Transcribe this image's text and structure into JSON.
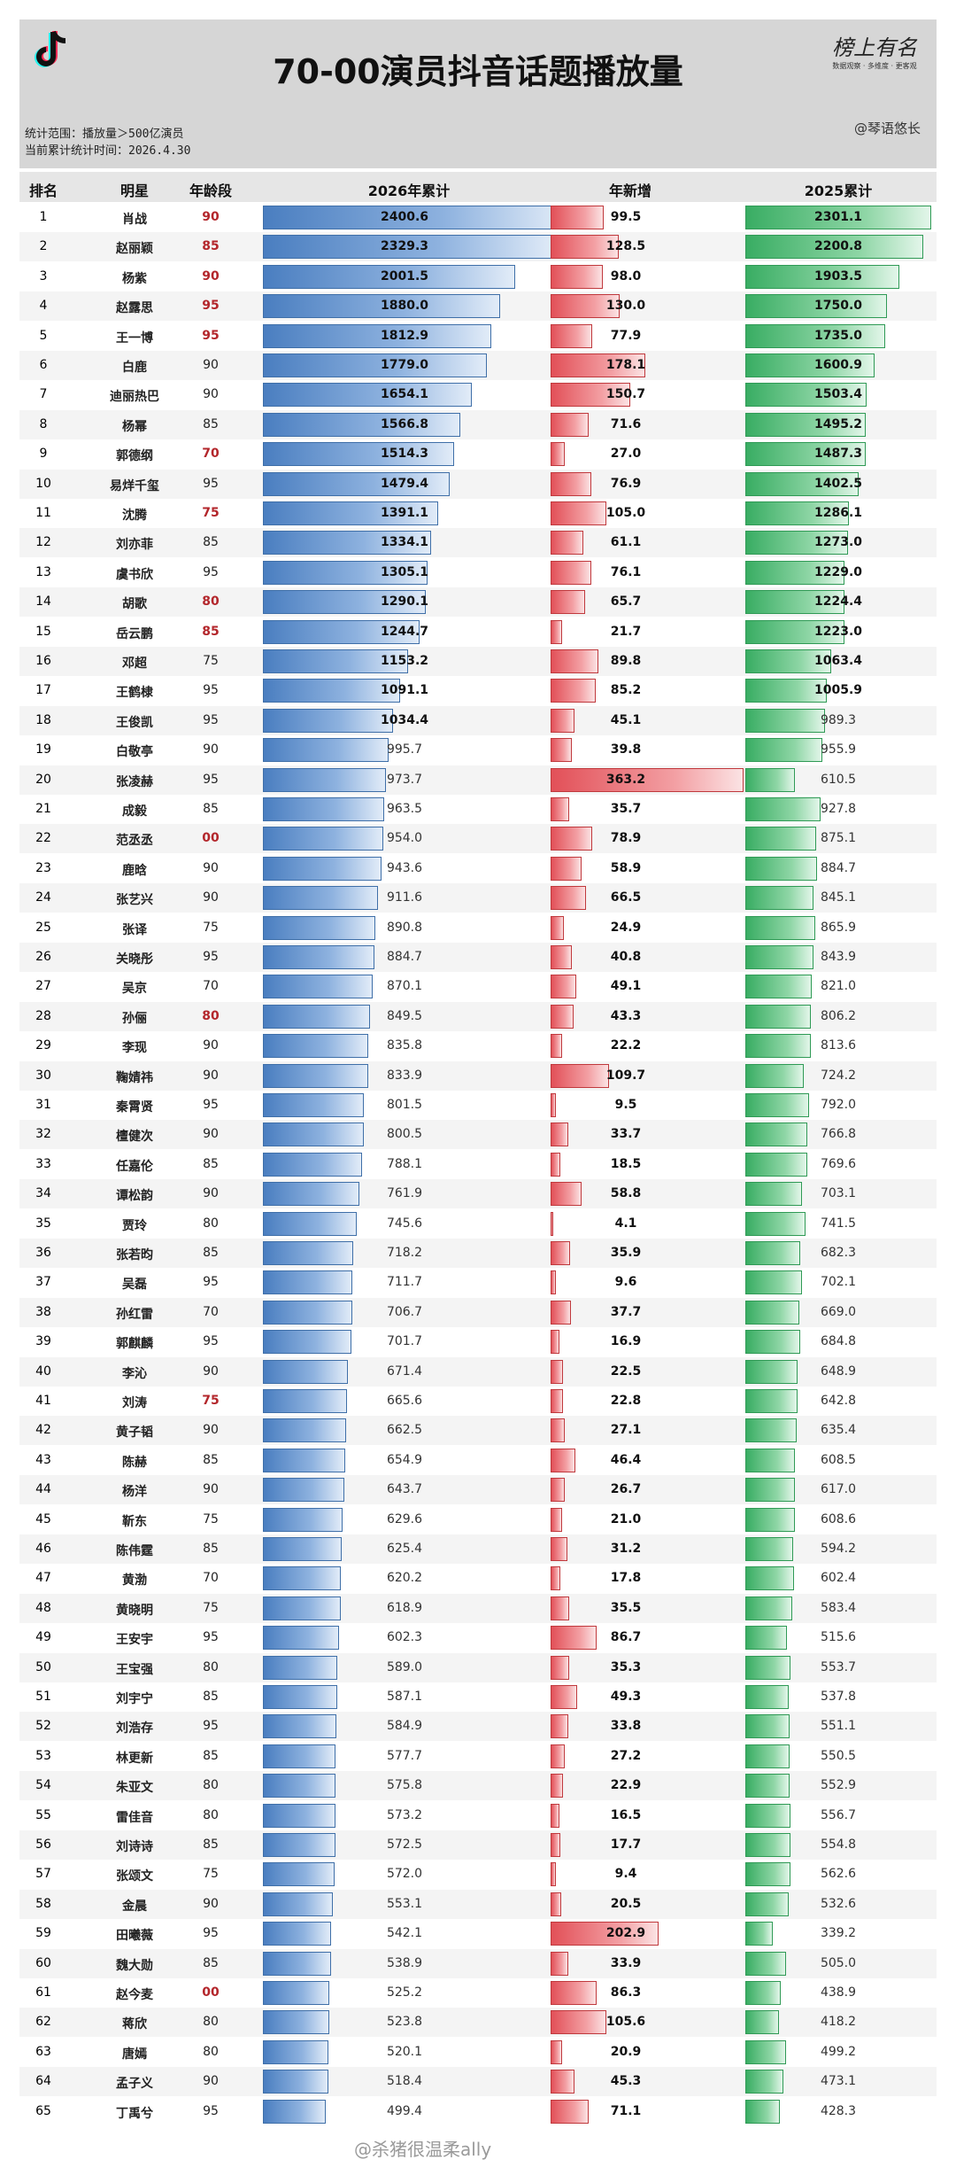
{
  "header": {
    "title": "70-00演员抖音话题播放量",
    "meta_scope": "统计范围：播放量＞500亿演员",
    "meta_time": "当前累计统计时间：2026.4.30",
    "signature": "榜上有名",
    "signature_sub": "数据观察 · 多维度 · 更客观",
    "account": "@琴语悠长"
  },
  "footer_watermark": "@杀猪很温柔ally",
  "colors": {
    "bar_2026": "#4a7ec0",
    "bar_new": "#e25058",
    "bar_2025": "#39ad63",
    "age_highlight": "#b3262b"
  },
  "chart_data": {
    "type": "table",
    "columns": [
      "排名",
      "明星",
      "年龄段",
      "2026年累计",
      "年新增",
      "2025累计"
    ],
    "rows": [
      {
        "rank": "1",
        "name": "肖战",
        "age": "90",
        "v2026": 2400.6,
        "new": 99.5,
        "v2025": 2301.1,
        "hl": true
      },
      {
        "rank": "2",
        "name": "赵丽颖",
        "age": "85",
        "v2026": 2329.3,
        "new": 128.5,
        "v2025": 2200.8,
        "hl": true
      },
      {
        "rank": "3",
        "name": "杨紫",
        "age": "90",
        "v2026": 2001.5,
        "new": 98.0,
        "v2025": 1903.5,
        "hl": true
      },
      {
        "rank": "4",
        "name": "赵露思",
        "age": "95",
        "v2026": 1880.0,
        "new": 130.0,
        "v2025": 1750.0,
        "hl": true
      },
      {
        "rank": "5",
        "name": "王一博",
        "age": "95",
        "v2026": 1812.9,
        "new": 77.9,
        "v2025": 1735.0,
        "hl": true
      },
      {
        "rank": "6",
        "name": "白鹿",
        "age": "90",
        "v2026": 1779.0,
        "new": 178.1,
        "v2025": 1600.9,
        "hl": false
      },
      {
        "rank": "7",
        "name": "迪丽热巴",
        "age": "90",
        "v2026": 1654.1,
        "new": 150.7,
        "v2025": 1503.4,
        "hl": false
      },
      {
        "rank": "8",
        "name": "杨幂",
        "age": "85",
        "v2026": 1566.8,
        "new": 71.6,
        "v2025": 1495.2,
        "hl": false
      },
      {
        "rank": "9",
        "name": "郭德纲",
        "age": "70",
        "v2026": 1514.3,
        "new": 27.0,
        "v2025": 1487.3,
        "hl": true
      },
      {
        "rank": "10",
        "name": "易烊千玺",
        "age": "95",
        "v2026": 1479.4,
        "new": 76.9,
        "v2025": 1402.5,
        "hl": false
      },
      {
        "rank": "11",
        "name": "沈腾",
        "age": "75",
        "v2026": 1391.1,
        "new": 105.0,
        "v2025": 1286.1,
        "hl": true
      },
      {
        "rank": "12",
        "name": "刘亦菲",
        "age": "85",
        "v2026": 1334.1,
        "new": 61.1,
        "v2025": 1273.0,
        "hl": false
      },
      {
        "rank": "13",
        "name": "虞书欣",
        "age": "95",
        "v2026": 1305.1,
        "new": 76.1,
        "v2025": 1229.0,
        "hl": false
      },
      {
        "rank": "14",
        "name": "胡歌",
        "age": "80",
        "v2026": 1290.1,
        "new": 65.7,
        "v2025": 1224.4,
        "hl": true
      },
      {
        "rank": "15",
        "name": "岳云鹏",
        "age": "85",
        "v2026": 1244.7,
        "new": 21.7,
        "v2025": 1223.0,
        "hl": true
      },
      {
        "rank": "16",
        "name": "邓超",
        "age": "75",
        "v2026": 1153.2,
        "new": 89.8,
        "v2025": 1063.4,
        "hl": false
      },
      {
        "rank": "17",
        "name": "王鹤棣",
        "age": "95",
        "v2026": 1091.1,
        "new": 85.2,
        "v2025": 1005.9,
        "hl": false
      },
      {
        "rank": "18",
        "name": "王俊凯",
        "age": "95",
        "v2026": 1034.4,
        "new": 45.1,
        "v2025": 989.3,
        "hl": false
      },
      {
        "rank": "19",
        "name": "白敬亭",
        "age": "90",
        "v2026": 995.7,
        "new": 39.8,
        "v2025": 955.9,
        "hl": false
      },
      {
        "rank": "20",
        "name": "张凌赫",
        "age": "95",
        "v2026": 973.7,
        "new": 363.2,
        "v2025": 610.5,
        "hl": false
      },
      {
        "rank": "21",
        "name": "成毅",
        "age": "85",
        "v2026": 963.5,
        "new": 35.7,
        "v2025": 927.8,
        "hl": false
      },
      {
        "rank": "22",
        "name": "范丞丞",
        "age": "00",
        "v2026": 954.0,
        "new": 78.9,
        "v2025": 875.1,
        "hl": true
      },
      {
        "rank": "23",
        "name": "鹿晗",
        "age": "90",
        "v2026": 943.6,
        "new": 58.9,
        "v2025": 884.7,
        "hl": false
      },
      {
        "rank": "24",
        "name": "张艺兴",
        "age": "90",
        "v2026": 911.6,
        "new": 66.5,
        "v2025": 845.1,
        "hl": false
      },
      {
        "rank": "25",
        "name": "张译",
        "age": "75",
        "v2026": 890.8,
        "new": 24.9,
        "v2025": 865.9,
        "hl": false
      },
      {
        "rank": "26",
        "name": "关晓彤",
        "age": "95",
        "v2026": 884.7,
        "new": 40.8,
        "v2025": 843.9,
        "hl": false
      },
      {
        "rank": "27",
        "name": "吴京",
        "age": "70",
        "v2026": 870.1,
        "new": 49.1,
        "v2025": 821.0,
        "hl": false
      },
      {
        "rank": "28",
        "name": "孙俪",
        "age": "80",
        "v2026": 849.5,
        "new": 43.3,
        "v2025": 806.2,
        "hl": true
      },
      {
        "rank": "29",
        "name": "李现",
        "age": "90",
        "v2026": 835.8,
        "new": 22.2,
        "v2025": 813.6,
        "hl": false
      },
      {
        "rank": "30",
        "name": "鞠婧祎",
        "age": "90",
        "v2026": 833.9,
        "new": 109.7,
        "v2025": 724.2,
        "hl": false
      },
      {
        "rank": "31",
        "name": "秦霄贤",
        "age": "95",
        "v2026": 801.5,
        "new": 9.5,
        "v2025": 792.0,
        "hl": false
      },
      {
        "rank": "32",
        "name": "檀健次",
        "age": "90",
        "v2026": 800.5,
        "new": 33.7,
        "v2025": 766.8,
        "hl": false
      },
      {
        "rank": "33",
        "name": "任嘉伦",
        "age": "85",
        "v2026": 788.1,
        "new": 18.5,
        "v2025": 769.6,
        "hl": false
      },
      {
        "rank": "34",
        "name": "谭松韵",
        "age": "90",
        "v2026": 761.9,
        "new": 58.8,
        "v2025": 703.1,
        "hl": false
      },
      {
        "rank": "35",
        "name": "贾玲",
        "age": "80",
        "v2026": 745.6,
        "new": 4.1,
        "v2025": 741.5,
        "hl": false
      },
      {
        "rank": "36",
        "name": "张若昀",
        "age": "85",
        "v2026": 718.2,
        "new": 35.9,
        "v2025": 682.3,
        "hl": false
      },
      {
        "rank": "37",
        "name": "吴磊",
        "age": "95",
        "v2026": 711.7,
        "new": 9.6,
        "v2025": 702.1,
        "hl": false
      },
      {
        "rank": "38",
        "name": "孙红雷",
        "age": "70",
        "v2026": 706.7,
        "new": 37.7,
        "v2025": 669.0,
        "hl": false
      },
      {
        "rank": "39",
        "name": "郭麒麟",
        "age": "95",
        "v2026": 701.7,
        "new": 16.9,
        "v2025": 684.8,
        "hl": false
      },
      {
        "rank": "40",
        "name": "李沁",
        "age": "90",
        "v2026": 671.4,
        "new": 22.5,
        "v2025": 648.9,
        "hl": false
      },
      {
        "rank": "41",
        "name": "刘涛",
        "age": "75",
        "v2026": 665.6,
        "new": 22.8,
        "v2025": 642.8,
        "hl": true
      },
      {
        "rank": "42",
        "name": "黄子韬",
        "age": "90",
        "v2026": 662.5,
        "new": 27.1,
        "v2025": 635.4,
        "hl": false
      },
      {
        "rank": "43",
        "name": "陈赫",
        "age": "85",
        "v2026": 654.9,
        "new": 46.4,
        "v2025": 608.5,
        "hl": false
      },
      {
        "rank": "44",
        "name": "杨洋",
        "age": "90",
        "v2026": 643.7,
        "new": 26.7,
        "v2025": 617.0,
        "hl": false
      },
      {
        "rank": "45",
        "name": "靳东",
        "age": "75",
        "v2026": 629.6,
        "new": 21.0,
        "v2025": 608.6,
        "hl": false
      },
      {
        "rank": "46",
        "name": "陈伟霆",
        "age": "85",
        "v2026": 625.4,
        "new": 31.2,
        "v2025": 594.2,
        "hl": false
      },
      {
        "rank": "47",
        "name": "黄渤",
        "age": "70",
        "v2026": 620.2,
        "new": 17.8,
        "v2025": 602.4,
        "hl": false
      },
      {
        "rank": "48",
        "name": "黄晓明",
        "age": "75",
        "v2026": 618.9,
        "new": 35.5,
        "v2025": 583.4,
        "hl": false
      },
      {
        "rank": "49",
        "name": "王安宇",
        "age": "95",
        "v2026": 602.3,
        "new": 86.7,
        "v2025": 515.6,
        "hl": false
      },
      {
        "rank": "50",
        "name": "王宝强",
        "age": "80",
        "v2026": 589.0,
        "new": 35.3,
        "v2025": 553.7,
        "hl": false
      },
      {
        "rank": "51",
        "name": "刘宇宁",
        "age": "85",
        "v2026": 587.1,
        "new": 49.3,
        "v2025": 537.8,
        "hl": false
      },
      {
        "rank": "52",
        "name": "刘浩存",
        "age": "95",
        "v2026": 584.9,
        "new": 33.8,
        "v2025": 551.1,
        "hl": false
      },
      {
        "rank": "53",
        "name": "林更新",
        "age": "85",
        "v2026": 577.7,
        "new": 27.2,
        "v2025": 550.5,
        "hl": false
      },
      {
        "rank": "54",
        "name": "朱亚文",
        "age": "80",
        "v2026": 575.8,
        "new": 22.9,
        "v2025": 552.9,
        "hl": false
      },
      {
        "rank": "55",
        "name": "雷佳音",
        "age": "80",
        "v2026": 573.2,
        "new": 16.5,
        "v2025": 556.7,
        "hl": false
      },
      {
        "rank": "56",
        "name": "刘诗诗",
        "age": "85",
        "v2026": 572.5,
        "new": 17.7,
        "v2025": 554.8,
        "hl": false
      },
      {
        "rank": "57",
        "name": "张颂文",
        "age": "75",
        "v2026": 572.0,
        "new": 9.4,
        "v2025": 562.6,
        "hl": false
      },
      {
        "rank": "58",
        "name": "金晨",
        "age": "90",
        "v2026": 553.1,
        "new": 20.5,
        "v2025": 532.6,
        "hl": false
      },
      {
        "rank": "59",
        "name": "田曦薇",
        "age": "95",
        "v2026": 542.1,
        "new": 202.9,
        "v2025": 339.2,
        "hl": false
      },
      {
        "rank": "60",
        "name": "魏大勋",
        "age": "85",
        "v2026": 538.9,
        "new": 33.9,
        "v2025": 505.0,
        "hl": false
      },
      {
        "rank": "61",
        "name": "赵今麦",
        "age": "00",
        "v2026": 525.2,
        "new": 86.3,
        "v2025": 438.9,
        "hl": true
      },
      {
        "rank": "62",
        "name": "蒋欣",
        "age": "80",
        "v2026": 523.8,
        "new": 105.6,
        "v2025": 418.2,
        "hl": false
      },
      {
        "rank": "63",
        "name": "唐嫣",
        "age": "80",
        "v2026": 520.1,
        "new": 20.9,
        "v2025": 499.2,
        "hl": false
      },
      {
        "rank": "64",
        "name": "孟子义",
        "age": "90",
        "v2026": 518.4,
        "new": 45.3,
        "v2025": 473.1,
        "hl": false
      },
      {
        "rank": "65",
        "name": "丁禹兮",
        "age": "95",
        "v2026": 499.4,
        "new": 71.1,
        "v2025": 428.3,
        "hl": false
      }
    ]
  }
}
